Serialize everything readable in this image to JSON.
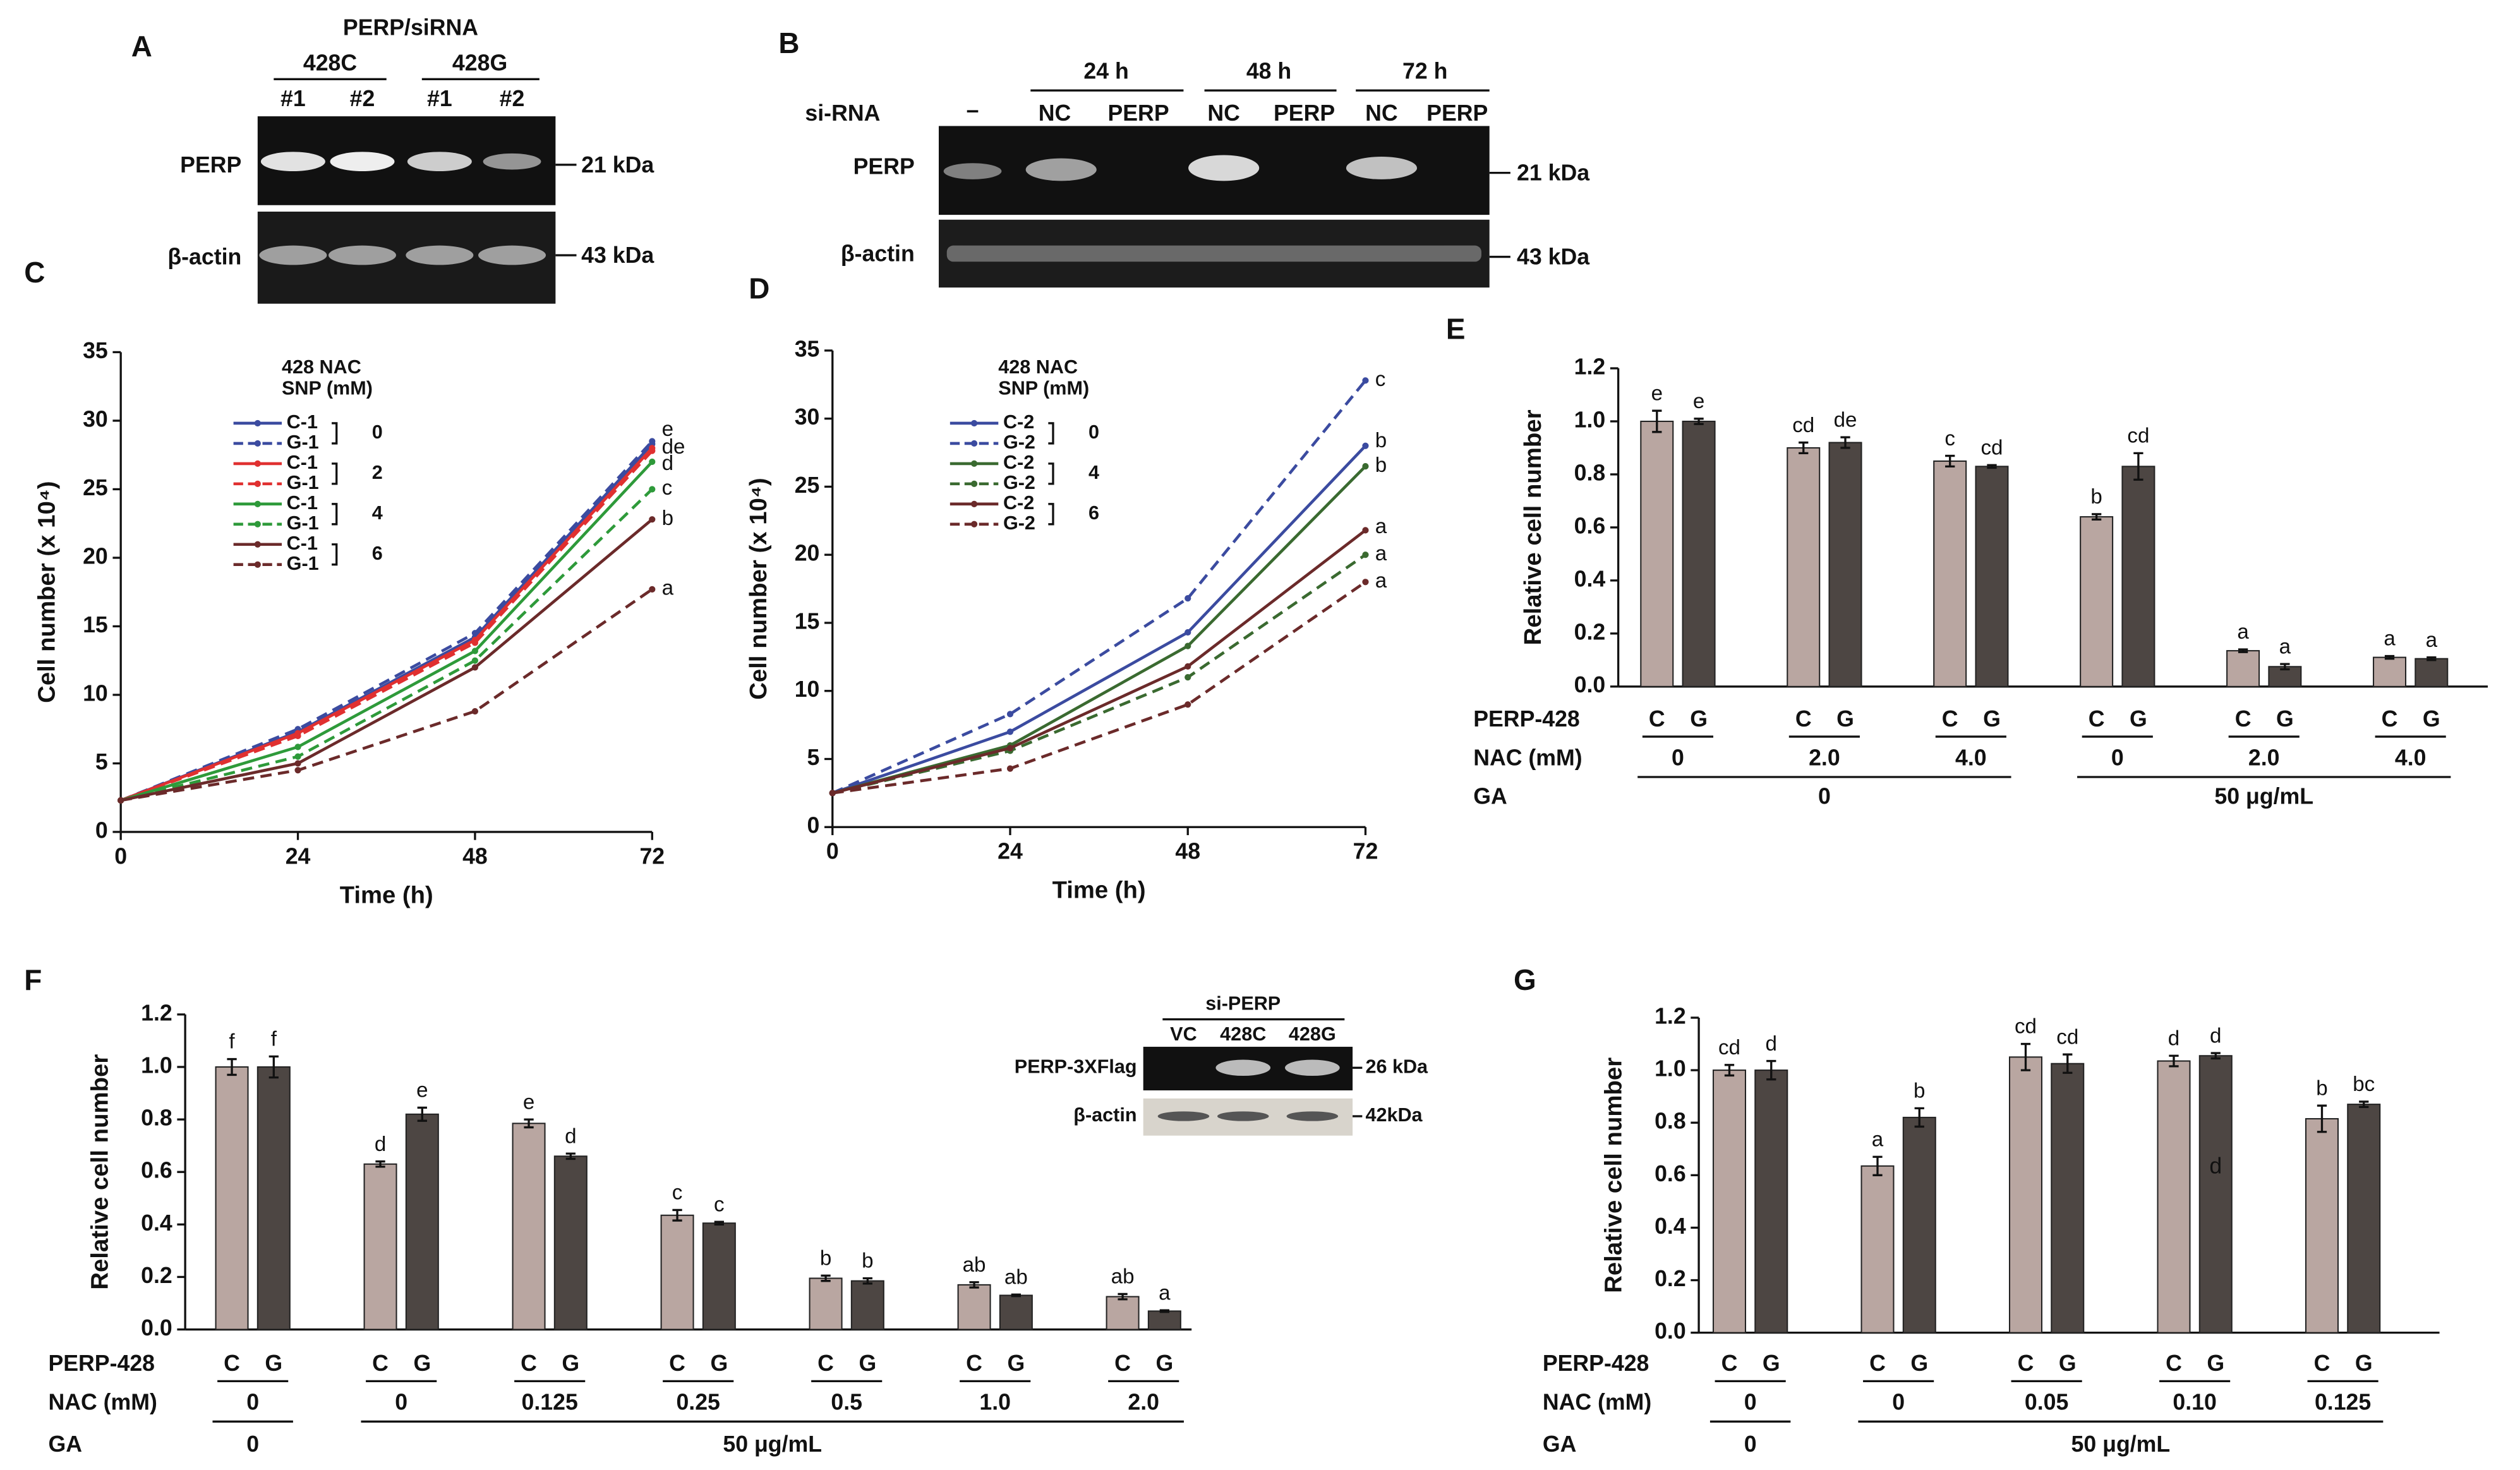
{
  "blots": [
    {
      "label": "A",
      "title": "PERP/siRNA",
      "groups": [
        "428C",
        "428G"
      ],
      "lanes": [
        "#1",
        "#2",
        "#1",
        "#2"
      ],
      "rows": [
        {
          "name": "PERP",
          "size": "21 kDa"
        },
        {
          "name": "β-actin",
          "size": "43 kDa"
        }
      ]
    },
    {
      "label": "B",
      "row_label": "si-RNA",
      "groups": [
        "24 h",
        "48 h",
        "72 h"
      ],
      "lanes": [
        "–",
        "NC",
        "PERP",
        "NC",
        "PERP",
        "NC",
        "PERP"
      ],
      "rows": [
        {
          "name": "PERP",
          "size": "21 kDa"
        },
        {
          "name": "β-actin",
          "size": "43 kDa"
        }
      ]
    },
    {
      "title": "si-PERP",
      "lanes": [
        "VC",
        "428C",
        "428G"
      ],
      "rows": [
        {
          "name": "PERP-3XFlag",
          "size": "26 kDa"
        },
        {
          "name": "β-actin",
          "size": "42kDa"
        }
      ]
    }
  ],
  "chart_data": [
    {
      "type": "line",
      "label": "C",
      "xlabel": "Time (h)",
      "ylabel": "Cell number (x 10⁴)",
      "x": [
        0,
        24,
        48,
        72
      ],
      "xlim": [
        0,
        72
      ],
      "xticks": [
        0,
        24,
        48,
        72
      ],
      "ylim": [
        0,
        35
      ],
      "yticks": [
        0,
        5,
        10,
        15,
        20,
        25,
        30,
        35
      ],
      "legend_title": [
        "428  NAC",
        "SNP  (mM)"
      ],
      "legend_groups": [
        "0",
        "2",
        "4",
        "6"
      ],
      "series": [
        {
          "name": "C-1",
          "color": "#3b4ba0",
          "dash": false,
          "values": [
            2.3,
            7.3,
            14.2,
            28.3
          ]
        },
        {
          "name": "G-1",
          "color": "#3b4ba0",
          "dash": true,
          "values": [
            2.3,
            7.5,
            14.5,
            28.5
          ]
        },
        {
          "name": "C-1",
          "color": "#e03030",
          "dash": false,
          "values": [
            2.3,
            7.2,
            14.0,
            28.0
          ]
        },
        {
          "name": "G-1",
          "color": "#e03030",
          "dash": true,
          "values": [
            2.3,
            7.0,
            13.8,
            27.8
          ]
        },
        {
          "name": "C-1",
          "color": "#2e9a3a",
          "dash": false,
          "values": [
            2.3,
            6.2,
            13.2,
            27.0
          ]
        },
        {
          "name": "G-1",
          "color": "#2e9a3a",
          "dash": true,
          "values": [
            2.3,
            5.5,
            12.5,
            25.0
          ]
        },
        {
          "name": "C-1",
          "color": "#6b2a2a",
          "dash": false,
          "values": [
            2.3,
            5.0,
            12.0,
            22.8
          ]
        },
        {
          "name": "G-1",
          "color": "#6b2a2a",
          "dash": true,
          "values": [
            2.3,
            4.5,
            8.8,
            17.7
          ]
        }
      ],
      "annotations": [
        {
          "text": "e",
          "y": 29.3
        },
        {
          "text": "de",
          "y": 28.0
        },
        {
          "text": "d",
          "y": 26.8
        },
        {
          "text": "c",
          "y": 25.0
        },
        {
          "text": "b",
          "y": 22.8
        },
        {
          "text": "a",
          "y": 17.7
        }
      ]
    },
    {
      "type": "line",
      "label": "D",
      "xlabel": "Time (h)",
      "ylabel": "Cell number (x 10⁴)",
      "x": [
        0,
        24,
        48,
        72
      ],
      "xlim": [
        0,
        72
      ],
      "xticks": [
        0,
        24,
        48,
        72
      ],
      "ylim": [
        0,
        35
      ],
      "yticks": [
        0,
        5,
        10,
        15,
        20,
        25,
        30,
        35
      ],
      "legend_title": [
        "428  NAC",
        "SNP  (mM)"
      ],
      "legend_groups": [
        "0",
        "4",
        "6"
      ],
      "series": [
        {
          "name": "C-2",
          "color": "#3b4ba0",
          "dash": false,
          "values": [
            2.5,
            7.0,
            14.3,
            28.0
          ]
        },
        {
          "name": "G-2",
          "color": "#3b4ba0",
          "dash": true,
          "values": [
            2.5,
            8.3,
            16.8,
            32.8
          ]
        },
        {
          "name": "C-2",
          "color": "#3a6a30",
          "dash": false,
          "values": [
            2.5,
            6.0,
            13.3,
            26.5
          ]
        },
        {
          "name": "G-2",
          "color": "#3a6a30",
          "dash": true,
          "values": [
            2.5,
            5.6,
            11.0,
            20.0
          ]
        },
        {
          "name": "C-2",
          "color": "#6b2a2a",
          "dash": false,
          "values": [
            2.5,
            5.8,
            11.8,
            21.8
          ]
        },
        {
          "name": "G-2",
          "color": "#6b2a2a",
          "dash": true,
          "values": [
            2.5,
            4.3,
            9.0,
            18.0
          ]
        }
      ],
      "annotations": [
        {
          "text": "c",
          "y": 32.8
        },
        {
          "text": "b",
          "y": 28.3
        },
        {
          "text": "b",
          "y": 26.5
        },
        {
          "text": "a",
          "y": 22.0
        },
        {
          "text": "a",
          "y": 20.0
        },
        {
          "text": "a",
          "y": 18.0
        }
      ]
    },
    {
      "type": "bar",
      "label": "E",
      "ylabel": "Relative cell number",
      "ylim": [
        0,
        1.2
      ],
      "yticks": [
        {
          "value": 0,
          "label": "0.0"
        },
        0.2,
        0.4,
        0.6,
        0.8,
        {
          "value": 1,
          "label": "1.0"
        },
        1.2
      ],
      "row_labels": [
        "PERP-428",
        "NAC (mM)",
        "GA"
      ],
      "nac": [
        "0",
        "2.0",
        "4.0",
        "0",
        "2.0",
        "4.0"
      ],
      "ga": [
        "0",
        "50 μg/mL"
      ],
      "series": [
        {
          "name": "C",
          "color": "#b9a6a1",
          "values": [
            1.0,
            0.9,
            0.85,
            0.64,
            0.135,
            0.11
          ],
          "errors": [
            0.04,
            0.02,
            0.02,
            0.01,
            0.005,
            0.005
          ],
          "letters": [
            "e",
            "cd",
            "c",
            "b",
            "a",
            "a"
          ]
        },
        {
          "name": "G",
          "color": "#4d4643",
          "values": [
            1.0,
            0.92,
            0.83,
            0.83,
            0.075,
            0.105
          ],
          "errors": [
            0.01,
            0.02,
            0.005,
            0.05,
            0.01,
            0.005
          ],
          "letters": [
            "e",
            "de",
            "cd",
            "cd",
            "a",
            "a"
          ]
        }
      ]
    },
    {
      "type": "bar",
      "label": "F",
      "ylabel": "Relative cell number",
      "ylim": [
        0,
        1.2
      ],
      "yticks": [
        {
          "value": 0,
          "label": "0.0"
        },
        0.2,
        0.4,
        0.6,
        0.8,
        {
          "value": 1,
          "label": "1.0"
        },
        1.2
      ],
      "row_labels": [
        "PERP-428",
        "NAC (mM)",
        "GA"
      ],
      "nac": [
        "0",
        "0",
        "0.125",
        "0.25",
        "0.5",
        "1.0",
        "2.0"
      ],
      "ga": [
        "0",
        "50 μg/mL"
      ],
      "series": [
        {
          "name": "C",
          "color": "#b9a6a1",
          "values": [
            1.0,
            0.63,
            0.785,
            0.435,
            0.195,
            0.17,
            0.125
          ],
          "errors": [
            0.03,
            0.01,
            0.015,
            0.02,
            0.01,
            0.01,
            0.01
          ],
          "letters": [
            "f",
            "d",
            "e",
            "c",
            "b",
            "ab",
            "ab"
          ]
        },
        {
          "name": "G",
          "color": "#4d4643",
          "values": [
            1.0,
            0.82,
            0.66,
            0.405,
            0.185,
            0.13,
            0.07
          ],
          "errors": [
            0.04,
            0.025,
            0.01,
            0.005,
            0.01,
            0.003,
            0.003
          ],
          "letters": [
            "f",
            "e",
            "d",
            "c",
            "b",
            "ab",
            "a"
          ]
        }
      ]
    },
    {
      "type": "bar",
      "label": "G",
      "ylabel": "Relative cell number",
      "ylim": [
        0,
        1.2
      ],
      "yticks": [
        {
          "value": 0,
          "label": "0.0"
        },
        0.2,
        0.4,
        0.6,
        0.8,
        {
          "value": 1,
          "label": "1.0"
        },
        1.2
      ],
      "row_labels": [
        "PERP-428",
        "NAC (mM)",
        "GA"
      ],
      "nac": [
        "0",
        "0",
        "0.05",
        "0.10",
        "0.125"
      ],
      "ga": [
        "0",
        "50 μg/mL"
      ],
      "inner_label": "d",
      "series": [
        {
          "name": "C",
          "color": "#b9a6a1",
          "values": [
            1.0,
            0.635,
            1.05,
            1.035,
            0.815
          ],
          "errors": [
            0.02,
            0.035,
            0.05,
            0.02,
            0.05
          ],
          "letters": [
            "cd",
            "a",
            "cd",
            "d",
            "b"
          ]
        },
        {
          "name": "G",
          "color": "#4d4643",
          "values": [
            1.0,
            0.82,
            1.025,
            1.055,
            0.87
          ],
          "errors": [
            0.035,
            0.035,
            0.035,
            0.01,
            0.01
          ],
          "letters": [
            "d",
            "b",
            "cd",
            "d",
            "bc"
          ]
        }
      ]
    }
  ]
}
